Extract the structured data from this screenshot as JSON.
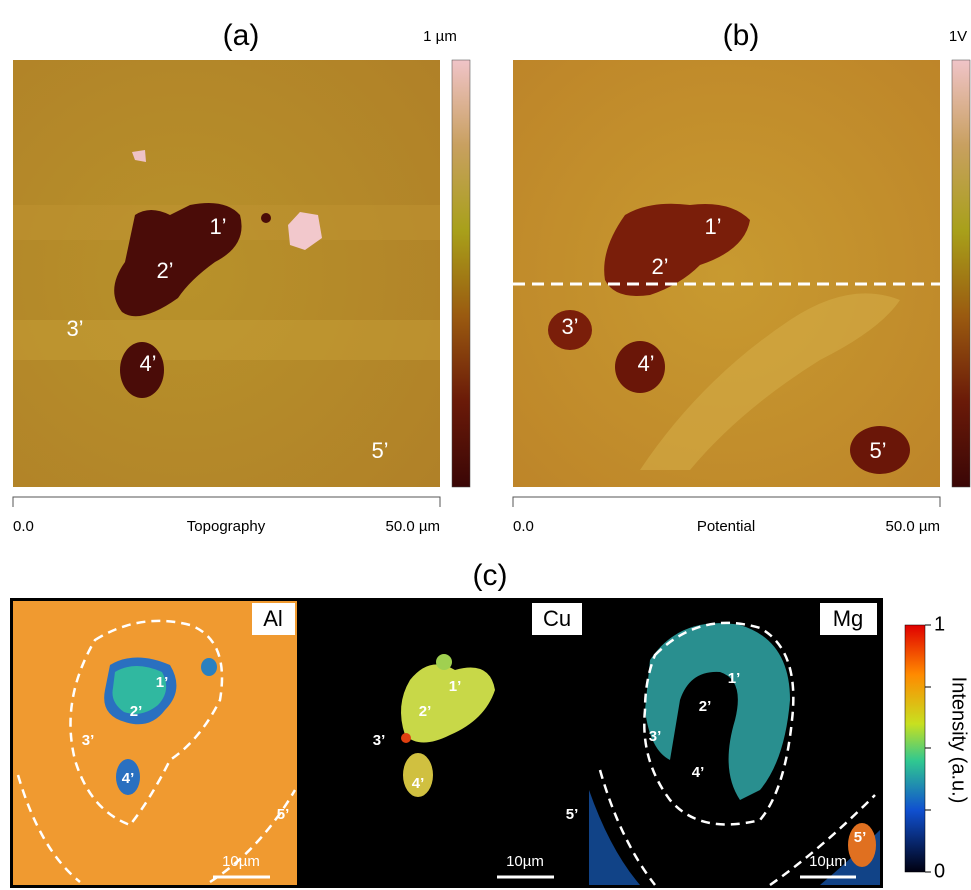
{
  "panels": [
    {
      "label": "(a)",
      "scale_max": "1 µm",
      "axis_start": "0.0",
      "axis_title": "Topography",
      "axis_end": "50.0 µm",
      "regions": [
        "1’",
        "2’",
        "3’",
        "4’",
        "5’"
      ]
    },
    {
      "label": "(b)",
      "scale_max": "1V",
      "axis_start": "0.0",
      "axis_title": "Potential",
      "axis_end": "50.0 µm",
      "regions": [
        "1’",
        "2’",
        "3’",
        "4’",
        "5’"
      ]
    }
  ],
  "panel_c": {
    "label": "(c)",
    "maps": [
      {
        "element": "Al",
        "scale_bar": "10µm",
        "regions": [
          "1’",
          "2’",
          "3’",
          "4’",
          "5’"
        ]
      },
      {
        "element": "Cu",
        "scale_bar": "10µm",
        "regions": [
          "1’",
          "2’",
          "3’",
          "4’",
          "5’"
        ]
      },
      {
        "element": "Mg",
        "scale_bar": "10µm",
        "regions": [
          "1’",
          "2’",
          "3’",
          "4’",
          "5’"
        ]
      }
    ],
    "colorbar": {
      "title": "Intensity (a.u.)",
      "max": "1",
      "min": "0"
    }
  }
}
